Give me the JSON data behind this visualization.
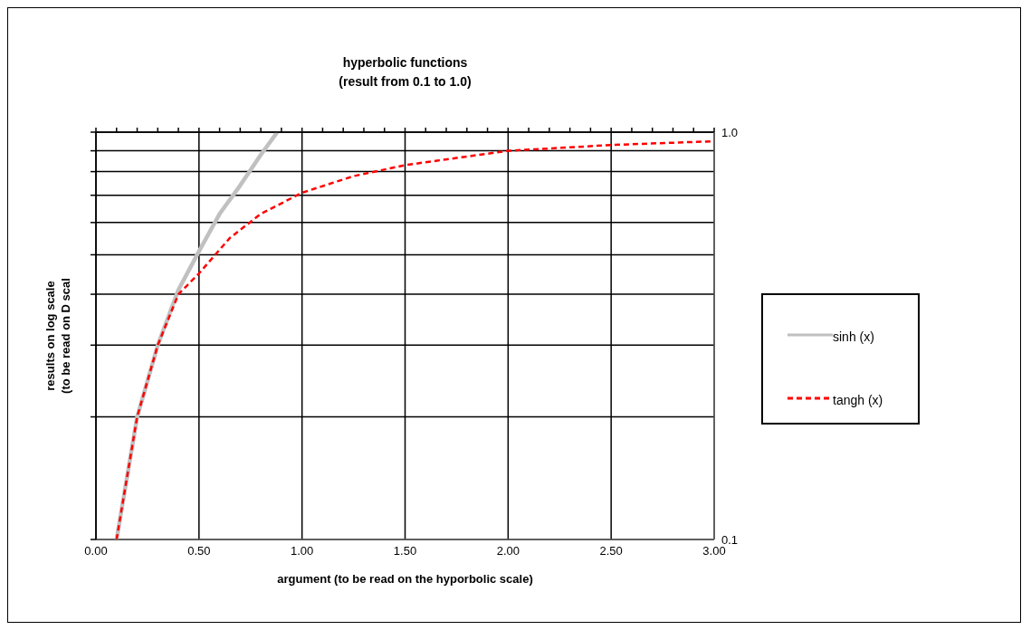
{
  "chart_data": {
    "type": "line",
    "title": "hyperbolic functions",
    "subtitle": "(result from 0.1 to 1.0)",
    "xlabel": "argument (to be read on the hyporbolic scale)",
    "ylabel": "results on log scale\n(to be read on D scal",
    "log": "y",
    "grid": true,
    "legend": "right",
    "marker": "none",
    "xlim": [
      0,
      3
    ],
    "xticks": [
      {
        "value": 0,
        "label": "0.00"
      },
      {
        "value": 0.1,
        "label": null
      },
      {
        "value": 0.2,
        "label": null
      },
      {
        "value": 0.3,
        "label": null
      },
      {
        "value": 0.4,
        "label": null
      },
      {
        "value": 0.5,
        "label": "0.50"
      },
      {
        "value": 0.6,
        "label": null
      },
      {
        "value": 0.7,
        "label": null
      },
      {
        "value": 0.8,
        "label": null
      },
      {
        "value": 0.9,
        "label": null
      },
      {
        "value": 1,
        "label": "1.00"
      },
      {
        "value": 1.1,
        "label": null
      },
      {
        "value": 1.2,
        "label": null
      },
      {
        "value": 1.3,
        "label": null
      },
      {
        "value": 1.4,
        "label": null
      },
      {
        "value": 1.5,
        "label": "1.50"
      },
      {
        "value": 1.6,
        "label": null
      },
      {
        "value": 1.7,
        "label": null
      },
      {
        "value": 1.8,
        "label": null
      },
      {
        "value": 1.9,
        "label": null
      },
      {
        "value": 2,
        "label": "2.00"
      },
      {
        "value": 2.1,
        "label": null
      },
      {
        "value": 2.2,
        "label": null
      },
      {
        "value": 2.3,
        "label": null
      },
      {
        "value": 2.4,
        "label": null
      },
      {
        "value": 2.5,
        "label": "2.50"
      },
      {
        "value": 2.6,
        "label": null
      },
      {
        "value": 2.7,
        "label": null
      },
      {
        "value": 2.8,
        "label": null
      },
      {
        "value": 2.9,
        "label": null
      },
      {
        "value": 3,
        "label": "3.00"
      }
    ],
    "ylim": [
      0.1,
      1
    ],
    "yticks": [
      {
        "value": 0.1,
        "label": "0.1"
      },
      {
        "value": 0.2,
        "label": null
      },
      {
        "value": 0.3,
        "label": null
      },
      {
        "value": 0.4,
        "label": null
      },
      {
        "value": 0.5,
        "label": null
      },
      {
        "value": 0.6,
        "label": null
      },
      {
        "value": 0.7,
        "label": null
      },
      {
        "value": 0.8,
        "label": null
      },
      {
        "value": 0.9,
        "label": null
      },
      {
        "value": 1,
        "label": "1.0"
      }
    ],
    "series": [
      {
        "name": "sinh (x)",
        "color": "#c0c0c0",
        "line_style": "solid",
        "x": [
          0.1,
          0.2,
          0.3,
          0.4,
          0.5,
          0.6,
          0.7,
          0.8,
          0.88
        ],
        "values": [
          0.1,
          0.2,
          0.3,
          0.41,
          0.51,
          0.63,
          0.74,
          0.88,
          1.0
        ]
      },
      {
        "name": "tangh (x)",
        "color": "#ff0000",
        "line_style": "dashed",
        "x": [
          0.1,
          0.2,
          0.3,
          0.4,
          0.5,
          0.65,
          0.8,
          1.0,
          1.25,
          1.5,
          2.0,
          2.5,
          3.0
        ],
        "values": [
          0.1,
          0.2,
          0.3,
          0.4,
          0.45,
          0.55,
          0.63,
          0.71,
          0.78,
          0.83,
          0.9,
          0.93,
          0.95
        ]
      }
    ]
  }
}
